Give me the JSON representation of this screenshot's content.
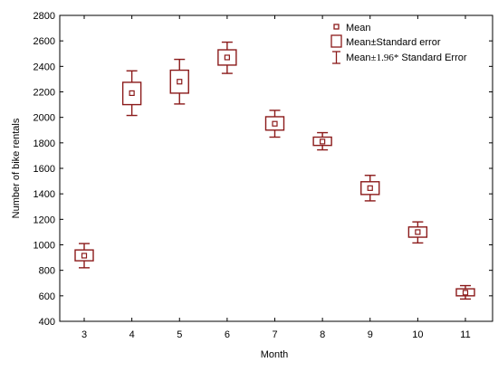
{
  "chart_data": {
    "type": "box",
    "xlabel": "Month",
    "ylabel": "Number of bike rentals",
    "ylim": [
      400,
      2800
    ],
    "yticks": [
      400,
      600,
      800,
      1000,
      1200,
      1400,
      1600,
      1800,
      2000,
      2200,
      2400,
      2600,
      2800
    ],
    "categories": [
      "3",
      "4",
      "5",
      "6",
      "7",
      "8",
      "9",
      "10",
      "11"
    ],
    "series": [
      {
        "name": "Mean",
        "values": [
          915,
          2190,
          2280,
          2470,
          1950,
          1810,
          1445,
          1100,
          625
        ]
      }
    ],
    "box_low": [
      875,
      2100,
      2190,
      2410,
      1900,
      1780,
      1395,
      1060,
      600
    ],
    "box_high": [
      960,
      2275,
      2370,
      2530,
      2005,
      1845,
      1495,
      1140,
      655
    ],
    "whisker_low": [
      820,
      2015,
      2105,
      2345,
      1845,
      1745,
      1345,
      1015,
      575
    ],
    "whisker_high": [
      1010,
      2365,
      2455,
      2590,
      2055,
      1880,
      1545,
      1180,
      680
    ],
    "legend": {
      "position": "top-right",
      "mean_label": "Mean",
      "se_label": "Mean±Standard error",
      "ci_prefix": "Mean",
      "ci_sym": "±1.96*",
      "ci_suffix": " Standard Error"
    },
    "colors": {
      "series": "#8b1a1a",
      "axis": "#000000"
    },
    "grid": false
  }
}
